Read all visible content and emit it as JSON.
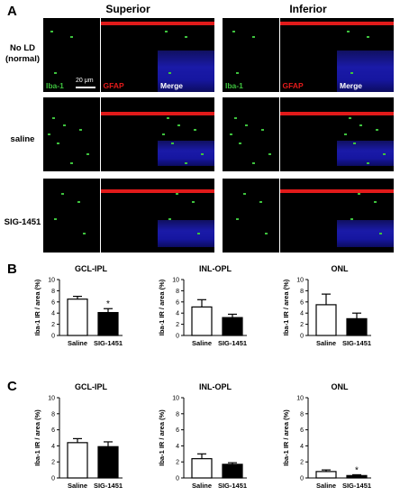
{
  "panels": {
    "a": "A",
    "b": "B",
    "c": "C"
  },
  "micrograph": {
    "columns": [
      "Superior",
      "Inferior"
    ],
    "rows": [
      "No LD\n(normal)",
      "saline",
      "SIG-1451"
    ],
    "channel_labels": [
      "Iba-1",
      "GFAP",
      "Merge"
    ],
    "scale_bar": "20 μm",
    "colors": {
      "iba1": "#3ec23e",
      "gfap": "#e11a1a",
      "nuclei": "#1a1aa8"
    }
  },
  "chart_data": [
    {
      "type": "bar",
      "panel": "B",
      "title": "GCL-IPL",
      "categories": [
        "Saline",
        "SIG-1451"
      ],
      "values": [
        6.5,
        4.1
      ],
      "errors": [
        0.5,
        0.7
      ],
      "significance": [
        "",
        "*"
      ],
      "ylabel": "Iba-1 IR / area (%)",
      "ylim": [
        0,
        10
      ],
      "yticks": [
        0,
        2,
        4,
        6,
        8,
        10
      ],
      "bar_fill": [
        "#ffffff",
        "#000000"
      ]
    },
    {
      "type": "bar",
      "panel": "B",
      "title": "INL-OPL",
      "categories": [
        "Saline",
        "SIG-1451"
      ],
      "values": [
        5.1,
        3.2
      ],
      "errors": [
        1.3,
        0.6
      ],
      "significance": [
        "",
        ""
      ],
      "ylabel": "Iba-1 IR / area (%)",
      "ylim": [
        0,
        10
      ],
      "yticks": [
        0,
        2,
        4,
        6,
        8,
        10
      ],
      "bar_fill": [
        "#ffffff",
        "#000000"
      ]
    },
    {
      "type": "bar",
      "panel": "B",
      "title": "ONL",
      "categories": [
        "Saline",
        "SIG-1451"
      ],
      "values": [
        5.5,
        3.0
      ],
      "errors": [
        1.9,
        1.0
      ],
      "significance": [
        "",
        ""
      ],
      "ylabel": "Iba-1 IR / area (%)",
      "ylim": [
        0,
        10
      ],
      "yticks": [
        0,
        2,
        4,
        6,
        8,
        10
      ],
      "bar_fill": [
        "#ffffff",
        "#000000"
      ]
    },
    {
      "type": "bar",
      "panel": "C",
      "title": "GCL-IPL",
      "categories": [
        "Saline",
        "SIG-1451"
      ],
      "values": [
        4.4,
        3.9
      ],
      "errors": [
        0.5,
        0.6
      ],
      "significance": [
        "",
        ""
      ],
      "ylabel": "Iba-1 IR / area (%)",
      "ylim": [
        0,
        10
      ],
      "yticks": [
        0,
        2,
        4,
        6,
        8,
        10
      ],
      "bar_fill": [
        "#ffffff",
        "#000000"
      ]
    },
    {
      "type": "bar",
      "panel": "C",
      "title": "INL-OPL",
      "categories": [
        "Saline",
        "SIG-1451"
      ],
      "values": [
        2.4,
        1.7
      ],
      "errors": [
        0.6,
        0.2
      ],
      "significance": [
        "",
        ""
      ],
      "ylabel": "Iba-1 IR / area (%)",
      "ylim": [
        0,
        10
      ],
      "yticks": [
        0,
        2,
        4,
        6,
        8,
        10
      ],
      "bar_fill": [
        "#ffffff",
        "#000000"
      ]
    },
    {
      "type": "bar",
      "panel": "C",
      "title": "ONL",
      "categories": [
        "Saline",
        "SIG-1451"
      ],
      "values": [
        0.8,
        0.3
      ],
      "errors": [
        0.2,
        0.1
      ],
      "significance": [
        "",
        "*"
      ],
      "ylabel": "Iba-1 IR / area (%)",
      "ylim": [
        0,
        10
      ],
      "yticks": [
        0,
        2,
        4,
        6,
        8,
        10
      ],
      "bar_fill": [
        "#ffffff",
        "#000000"
      ]
    }
  ]
}
